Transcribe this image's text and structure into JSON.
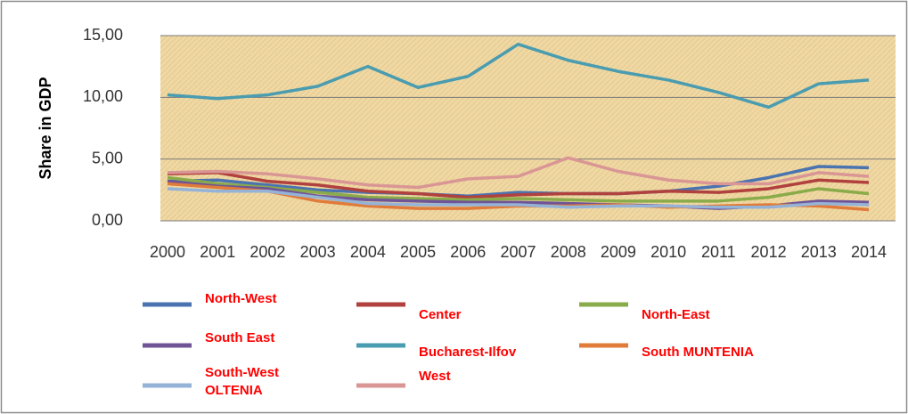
{
  "chart_data": {
    "type": "line",
    "y_label": "Share in GDP",
    "categories": [
      "2000",
      "2001",
      "2002",
      "2003",
      "2004",
      "2005",
      "2006",
      "2007",
      "2008",
      "2009",
      "2010",
      "2011",
      "2012",
      "2013",
      "2014"
    ],
    "ylim": [
      0,
      15
    ],
    "yticks": [
      {
        "value": 0,
        "label": "0,00"
      },
      {
        "value": 5,
        "label": "5,00"
      },
      {
        "value": 10,
        "label": "10,00"
      },
      {
        "value": 15,
        "label": "15,00"
      }
    ],
    "grid": true,
    "legend": "bottom",
    "series": [
      {
        "name": "North-West",
        "color": "#4a73b0",
        "values": [
          3.2,
          3.3,
          2.9,
          2.5,
          2.3,
          2.2,
          2.0,
          2.3,
          2.2,
          2.2,
          2.4,
          2.8,
          3.5,
          4.4,
          4.3
        ]
      },
      {
        "name": "Center",
        "color": "#b0413e",
        "values": [
          3.8,
          3.9,
          3.2,
          2.9,
          2.4,
          2.2,
          1.9,
          2.1,
          2.2,
          2.2,
          2.4,
          2.3,
          2.6,
          3.3,
          3.1
        ]
      },
      {
        "name": "North-East",
        "color": "#8aab4a",
        "values": [
          3.5,
          3.0,
          2.7,
          2.3,
          1.9,
          1.8,
          1.7,
          1.8,
          1.7,
          1.6,
          1.6,
          1.6,
          1.9,
          2.6,
          2.2
        ]
      },
      {
        "name": "South East",
        "color": "#6f5496",
        "values": [
          3.2,
          2.8,
          2.6,
          2.0,
          1.7,
          1.6,
          1.5,
          1.5,
          1.4,
          1.3,
          1.2,
          1.0,
          1.2,
          1.6,
          1.5
        ]
      },
      {
        "name": "Bucharest-Ilfov",
        "color": "#4a9cb0",
        "values": [
          10.2,
          9.9,
          10.2,
          10.9,
          12.5,
          10.8,
          11.7,
          14.3,
          13.0,
          12.1,
          11.4,
          10.4,
          9.2,
          11.1,
          11.4
        ]
      },
      {
        "name": "South MUNTENIA",
        "color": "#e07b39",
        "values": [
          3.0,
          2.7,
          2.4,
          1.6,
          1.2,
          1.0,
          1.0,
          1.2,
          1.2,
          1.3,
          1.1,
          1.2,
          1.3,
          1.2,
          0.9
        ]
      },
      {
        "name": "South-West OLTENIA",
        "color": "#95b3d7",
        "values": [
          2.6,
          2.4,
          2.4,
          1.9,
          1.4,
          1.3,
          1.3,
          1.3,
          1.1,
          1.2,
          1.2,
          1.1,
          1.1,
          1.4,
          1.3
        ]
      },
      {
        "name": "West",
        "color": "#d99694",
        "values": [
          3.9,
          4.0,
          3.8,
          3.4,
          2.9,
          2.7,
          3.4,
          3.6,
          5.1,
          4.0,
          3.3,
          3.0,
          3.0,
          3.9,
          3.6
        ]
      }
    ]
  }
}
